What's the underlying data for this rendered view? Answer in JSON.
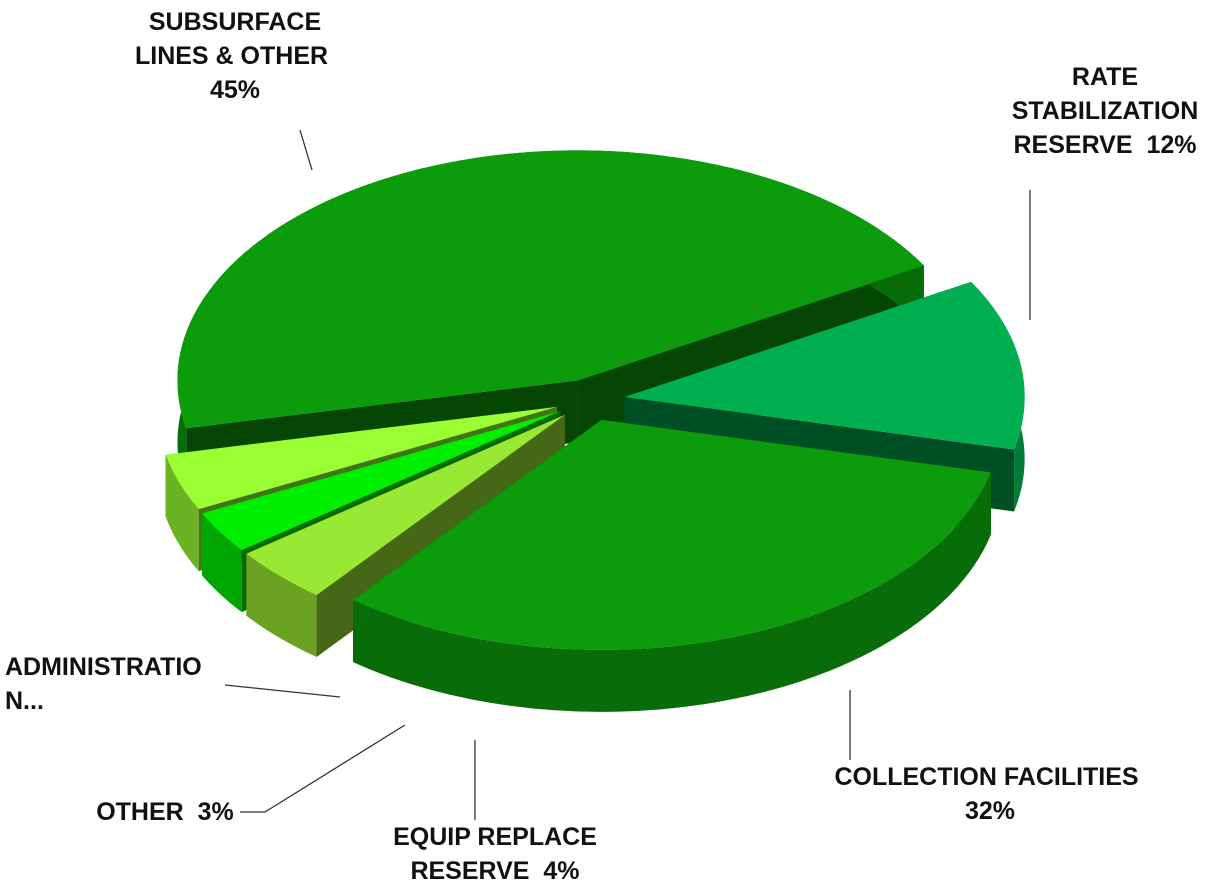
{
  "chart_data": {
    "type": "pie3d",
    "categories": [
      "SUBSURFACE LINES & OTHER",
      "RATE STABILIZATION RESERVE",
      "COLLECTION FACILITIES",
      "EQUIP REPLACE RESERVE",
      "OTHER",
      "ADMINISTRATION..."
    ],
    "values": [
      45,
      12,
      32,
      4,
      3,
      4
    ],
    "value_labels": [
      "45%",
      "12%",
      "32%",
      "4%",
      "3%",
      null
    ],
    "colors": [
      "#0b9b0b",
      "#00b050",
      "#0b9b0b",
      "#99e834",
      "#00ee00",
      "#99ff33"
    ]
  }
}
